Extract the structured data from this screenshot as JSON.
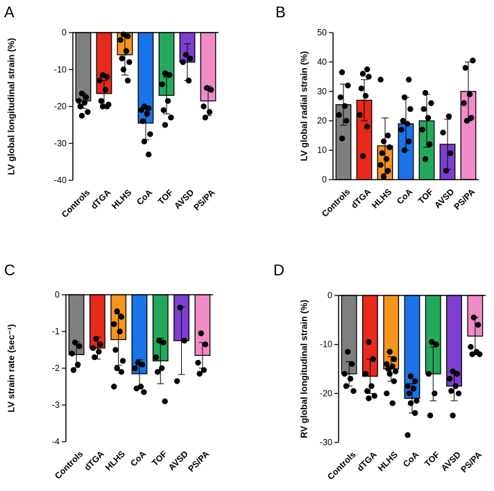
{
  "chart_data": [
    {
      "type": "bar",
      "panel_label": "A",
      "title": "",
      "xlabel": "",
      "ylabel": "LV global longitudinal strain (%)",
      "ylim": [
        -40,
        0
      ],
      "yticks": [
        0,
        -10,
        -20,
        -30,
        -40
      ],
      "ytick_labels": [
        "0",
        "-10",
        "-20",
        "-30",
        "-40"
      ],
      "categories": [
        "Controls",
        "dTGA",
        "HLHS",
        "CoA",
        "TOF",
        "AVSD",
        "PS/PA"
      ],
      "colors": [
        "#7f7f7f",
        "#e8291c",
        "#f7941d",
        "#1a73e8",
        "#23a95b",
        "#7d3fd1",
        "#f08bc6"
      ],
      "values": [
        -18.5,
        -16.5,
        -6,
        -24.5,
        -17,
        -8,
        -18.5
      ],
      "error": [
        2,
        3.5,
        5.5,
        4.5,
        5,
        5,
        4
      ],
      "points": [
        [
          -16.5,
          -17.5,
          -18.5,
          -19,
          -20,
          -21.5,
          -22.5
        ],
        [
          -11.5,
          -12,
          -13,
          -15.5,
          -18.5,
          -19.5,
          -20,
          -20
        ],
        [
          -0.5,
          -1,
          -2,
          -5,
          -7,
          -8,
          -10,
          -13
        ],
        [
          -20,
          -20.5,
          -21,
          -22,
          -24,
          -27.5,
          -29.5,
          -33
        ],
        [
          -11,
          -11.5,
          -14,
          -18.5,
          -21,
          -23,
          -25
        ],
        [
          -6,
          -7,
          -8,
          -13
        ],
        [
          -15,
          -15.5,
          -20,
          -21.5,
          -23
        ]
      ]
    },
    {
      "type": "bar",
      "panel_label": "B",
      "title": "",
      "xlabel": "",
      "ylabel": "LV global radial strain (%)",
      "ylim": [
        0,
        50
      ],
      "yticks": [
        0,
        10,
        20,
        30,
        40,
        50
      ],
      "ytick_labels": [
        "0",
        "10",
        "20",
        "30",
        "40",
        "50"
      ],
      "categories": [
        "Controls",
        "dTGA",
        "HLHS",
        "CoA",
        "TOF",
        "AVSD",
        "PS/PA"
      ],
      "colors": [
        "#7f7f7f",
        "#e8291c",
        "#f7941d",
        "#1a73e8",
        "#23a95b",
        "#7d3fd1",
        "#f08bc6"
      ],
      "values": [
        25.5,
        27,
        11.5,
        19,
        20,
        12,
        30
      ],
      "error": [
        7,
        7,
        9.5,
        9,
        9,
        8.5,
        10
      ],
      "points": [
        [
          14,
          20,
          22,
          25,
          28,
          32,
          36.5
        ],
        [
          8,
          18,
          22,
          28.5,
          31,
          35,
          36,
          37.5
        ],
        [
          1,
          3,
          5,
          7,
          9,
          11,
          13,
          15,
          34
        ],
        [
          10,
          13,
          17,
          19,
          20,
          24,
          28,
          34
        ],
        [
          7,
          12,
          17,
          21,
          24,
          26,
          29.5
        ],
        [
          3,
          9,
          16,
          21.5
        ],
        [
          20,
          21,
          26,
          29,
          38,
          40.5
        ]
      ]
    },
    {
      "type": "bar",
      "panel_label": "C",
      "title": "",
      "xlabel": "",
      "ylabel": "LV strain rate (sec⁻¹)",
      "ylim": [
        -4,
        0
      ],
      "yticks": [
        0,
        -1,
        -2,
        -3,
        -4
      ],
      "ytick_labels": [
        "0",
        "-1",
        "-2",
        "-3",
        "-4"
      ],
      "categories": [
        "Controls",
        "dTGA",
        "HLHS",
        "CoA",
        "TOF",
        "AVSD",
        "PS/PA"
      ],
      "colors": [
        "#7f7f7f",
        "#e8291c",
        "#f7941d",
        "#1a73e8",
        "#23a95b",
        "#7d3fd1",
        "#f08bc6"
      ],
      "values": [
        -1.63,
        -1.45,
        -1.22,
        -2.15,
        -1.8,
        -1.25,
        -1.65
      ],
      "error": [
        0.35,
        0.3,
        0.7,
        0.38,
        0.62,
        0.92,
        0.35
      ],
      "points": [
        [
          -1.3,
          -1.4,
          -1.6,
          -1.9,
          -2.05
        ],
        [
          -1.2,
          -1.35,
          -1.45,
          -1.55,
          -1.7
        ],
        [
          -0.45,
          -0.6,
          -0.8,
          -1.0,
          -1.5,
          -1.8,
          -2.0,
          -2.1,
          -2.5
        ],
        [
          -1.85,
          -1.9,
          -2.0,
          -2.5,
          -2.55,
          -2.65
        ],
        [
          -1.25,
          -1.3,
          -1.7,
          -2.0,
          -2.1,
          -2.9
        ],
        [
          -0.35,
          -1.25,
          -2.35
        ],
        [
          -1.05,
          -1.35,
          -1.85,
          -2.05,
          -2.15
        ]
      ]
    },
    {
      "type": "bar",
      "panel_label": "D",
      "title": "",
      "xlabel": "",
      "ylabel": "RV global longitudinal strain (%)",
      "ylim": [
        -30,
        0
      ],
      "yticks": [
        0,
        -10,
        -20,
        -30
      ],
      "ytick_labels": [
        "0",
        "-10",
        "-20",
        "-30"
      ],
      "categories": [
        "Controls",
        "dTGA",
        "HLHS",
        "CoA",
        "TOF",
        "AVSD",
        "PS/PA"
      ],
      "colors": [
        "#7f7f7f",
        "#e8291c",
        "#f7941d",
        "#1a73e8",
        "#23a95b",
        "#7d3fd1",
        "#f08bc6"
      ],
      "values": [
        -16,
        -16.5,
        -15,
        -21,
        -16,
        -18.5,
        -8.3
      ],
      "error": [
        2.5,
        3.5,
        2.5,
        3,
        5.5,
        3,
        3.8
      ],
      "points": [
        [
          -11.5,
          -14,
          -16,
          -17,
          -18.5,
          -19.5
        ],
        [
          -9.5,
          -13,
          -16,
          -18.5,
          -19.5,
          -20.5,
          -21
        ],
        [
          -11.5,
          -13,
          -14,
          -14.5,
          -15,
          -15.5,
          -16,
          -17.5,
          -20,
          -22
        ],
        [
          -16.5,
          -17.5,
          -18.5,
          -19,
          -20,
          -21.5,
          -22,
          -24,
          -28.5
        ],
        [
          -9.5,
          -10,
          -16,
          -20,
          -24.5
        ],
        [
          -15.5,
          -16,
          -17,
          -18.5,
          -19.5,
          -20,
          -24.5
        ],
        [
          -4.5,
          -6,
          -10.5,
          -11.5,
          -12,
          -12
        ]
      ]
    }
  ]
}
